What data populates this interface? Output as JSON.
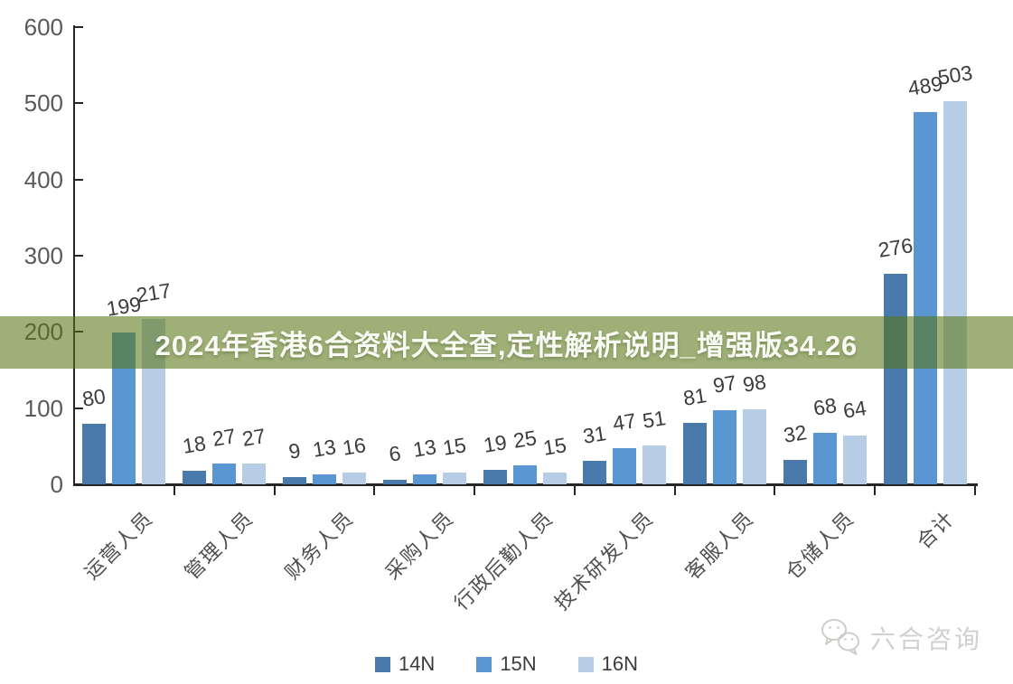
{
  "banner": {
    "text": "2024年香港6合资料大全查,定性解析说明_增强版34.26",
    "bg_color": "rgba(88,117,20,0.58)",
    "text_color": "#FBFBF5"
  },
  "watermark": {
    "icon": "wechat-icon",
    "text": "六合咨询",
    "color": "#D2D0CC"
  },
  "chart_data": {
    "type": "bar",
    "title": "",
    "xlabel": "",
    "ylabel": "",
    "categories": [
      "运营人员",
      "管理人员",
      "财务人员",
      "采购人员",
      "行政后勤人员",
      "技术研发人员",
      "客服人员",
      "仓储人员",
      "合计"
    ],
    "series": [
      {
        "name": "14N",
        "color": "#4A7AAC",
        "values": [
          80,
          18,
          9,
          6,
          19,
          31,
          81,
          32,
          276
        ]
      },
      {
        "name": "15N",
        "color": "#5A96D2",
        "values": [
          199,
          27,
          13,
          13,
          25,
          47,
          97,
          68,
          489
        ]
      },
      {
        "name": "16N",
        "color": "#B7CCE5",
        "values": [
          217,
          27,
          16,
          15,
          15,
          51,
          98,
          64,
          503
        ]
      }
    ],
    "ylim": [
      0,
      600
    ],
    "yticks": [
      0,
      100,
      200,
      300,
      400,
      500,
      600
    ],
    "grid": false,
    "legend_position": "bottom",
    "axis_color": "#262626",
    "tick_label_color": "#595959",
    "value_label_color": "#3C3C3C",
    "category_label_color": "#4F4F4F"
  }
}
